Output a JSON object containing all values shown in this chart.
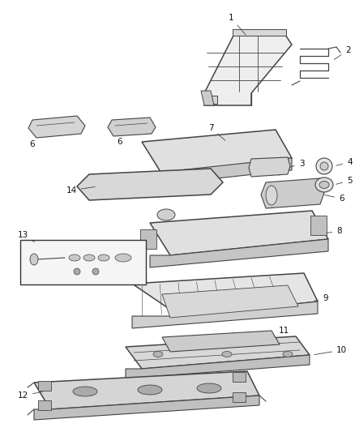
{
  "background_color": "#ffffff",
  "line_color": "#444444",
  "label_color": "#111111",
  "figsize": [
    4.38,
    5.33
  ],
  "dpi": 100,
  "label_fontsize": 7.5,
  "fill_light": "#e8e8e8",
  "fill_mid": "#d0d0d0",
  "fill_dark": "#b8b8b8",
  "fill_white": "#f5f5f5"
}
